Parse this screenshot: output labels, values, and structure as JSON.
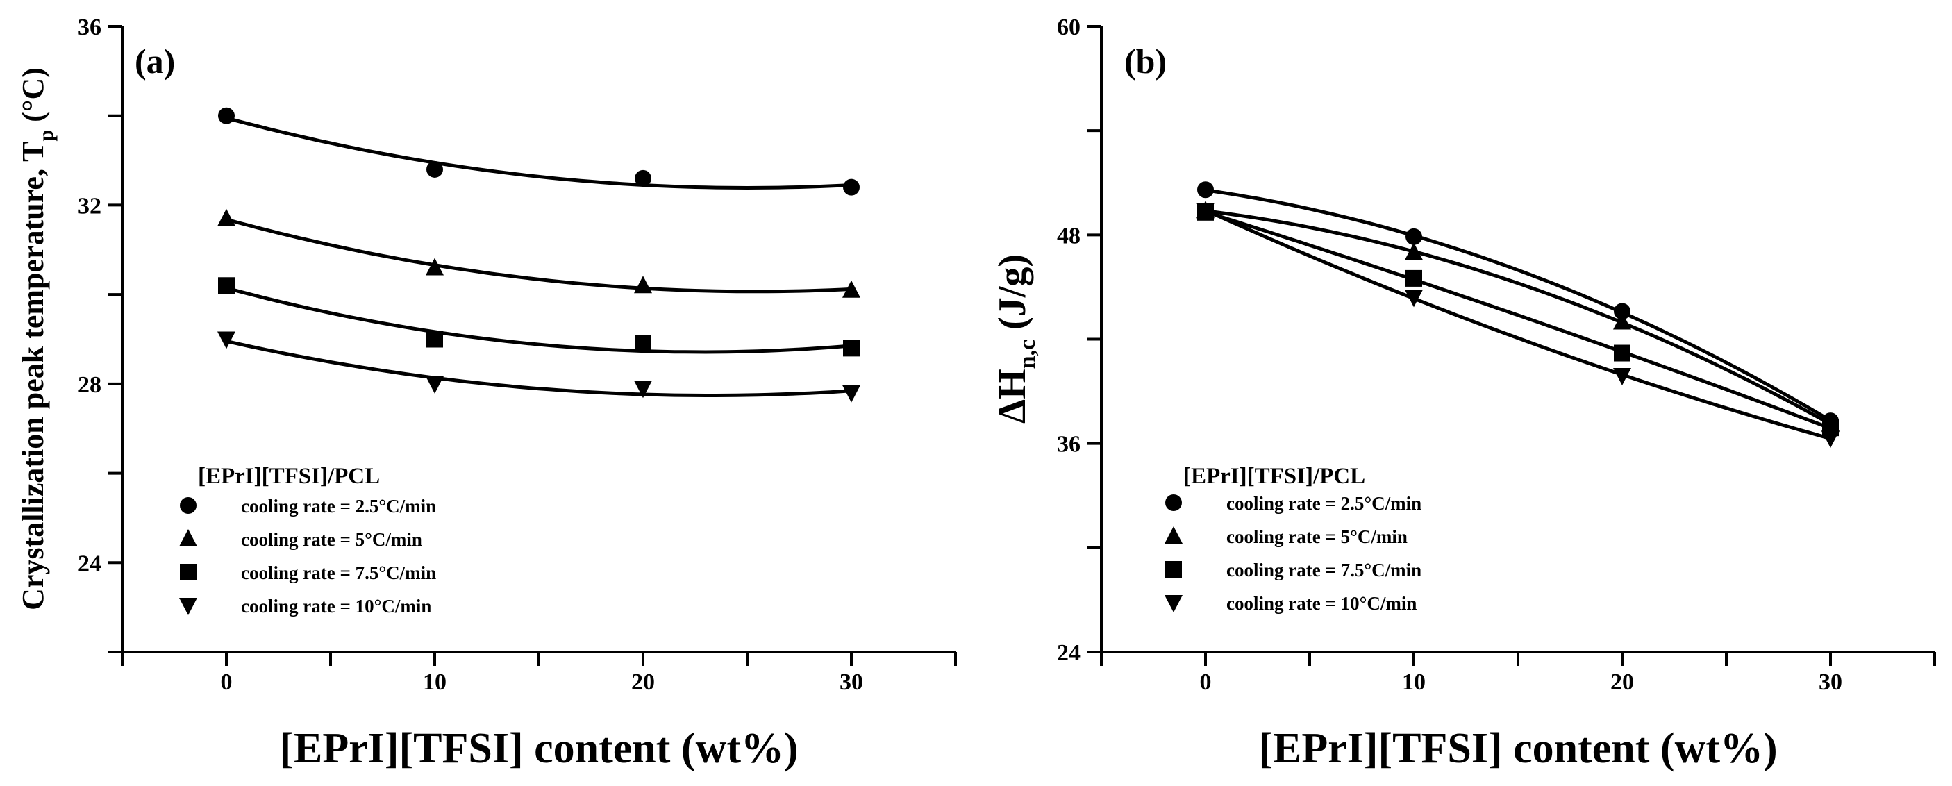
{
  "chart_data": [
    {
      "type": "scatter",
      "panel_label": "(a)",
      "xlabel": "[EPrI][TFSI] content (wt%)",
      "ylabel": "Crystallization peak temperature, T",
      "ylabel_sub": "p",
      "ylabel_unit": " (°C)",
      "xlim": [
        -5,
        35
      ],
      "ylim": [
        22,
        36
      ],
      "x_ticks": [
        0,
        10,
        20,
        30
      ],
      "y_ticks": [
        24,
        28,
        32,
        36
      ],
      "x_tick_labels": [
        "0",
        "10",
        "20",
        "30"
      ],
      "y_tick_labels": [
        "24",
        "28",
        "32",
        "36"
      ],
      "legend_title": "[EPrI][TFSI]/PCL",
      "fit": "quadratic",
      "x": [
        0,
        10,
        20,
        30
      ],
      "series": [
        {
          "name": "cooling rate = 2.5°C/min",
          "marker": "circle",
          "values": [
            34.0,
            32.8,
            32.6,
            32.4
          ]
        },
        {
          "name": "cooling rate = 5°C/min",
          "marker": "triangle-up",
          "values": [
            31.7,
            30.6,
            30.2,
            30.1
          ]
        },
        {
          "name": "cooling rate = 7.5°C/min",
          "marker": "square",
          "values": [
            30.2,
            29.0,
            28.9,
            28.8
          ]
        },
        {
          "name": "cooling rate = 10°C/min",
          "marker": "triangle-down",
          "values": [
            29.0,
            28.0,
            27.9,
            27.8
          ]
        }
      ]
    },
    {
      "type": "scatter",
      "panel_label": "(b)",
      "xlabel": "[EPrI][TFSI] content (wt%)",
      "ylabel": "ΔH",
      "ylabel_sub": "n,c",
      "ylabel_unit": " (J/g)",
      "xlim": [
        -5,
        35
      ],
      "ylim": [
        24,
        60
      ],
      "x_ticks": [
        0,
        10,
        20,
        30
      ],
      "y_ticks": [
        24,
        36,
        48,
        60
      ],
      "x_tick_labels": [
        "0",
        "10",
        "20",
        "30"
      ],
      "y_tick_labels": [
        "24",
        "36",
        "48",
        "60"
      ],
      "legend_title": "[EPrI][TFSI]/PCL",
      "fit": "quadratic",
      "x": [
        0,
        10,
        20,
        30
      ],
      "series": [
        {
          "name": "cooling rate = 2.5°C/min",
          "marker": "circle",
          "values": [
            50.6,
            47.9,
            43.6,
            37.3
          ]
        },
        {
          "name": "cooling rate = 5°C/min",
          "marker": "triangle-up",
          "values": [
            49.4,
            47.0,
            43.0,
            37.1
          ]
        },
        {
          "name": "cooling rate = 7.5°C/min",
          "marker": "square",
          "values": [
            49.3,
            45.5,
            41.2,
            36.9
          ]
        },
        {
          "name": "cooling rate = 10°C/min",
          "marker": "triangle-down",
          "values": [
            49.4,
            44.4,
            39.9,
            36.3
          ]
        }
      ]
    }
  ]
}
